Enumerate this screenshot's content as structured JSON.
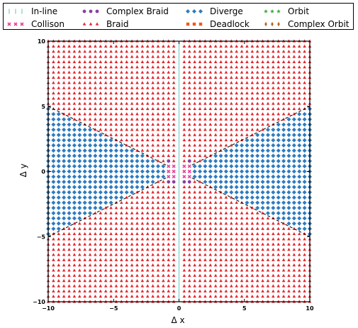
{
  "chart_data": {
    "type": "scatter",
    "title": "",
    "xlabel": "Δ x",
    "ylabel": "Δ y",
    "xlim": [
      -10,
      10
    ],
    "ylim": [
      -10,
      10
    ],
    "xticks": [
      -10,
      -5,
      0,
      5,
      10
    ],
    "yticks": [
      -10,
      -5,
      0,
      5,
      10
    ],
    "xtick_labels": [
      "−10",
      "−5",
      "0",
      "5",
      "10"
    ],
    "ytick_labels": [
      "−10",
      "−5",
      "0",
      "5",
      "10"
    ],
    "grid": false,
    "legend_position": "top",
    "grid_step": 0.4,
    "boundary_lines": [
      {
        "style": "dashed",
        "color": "#000000",
        "points": [
          [
            -10,
            5.0
          ],
          [
            -1.0,
            0.5
          ]
        ]
      },
      {
        "style": "dashed",
        "color": "#000000",
        "points": [
          [
            -10,
            -5.0
          ],
          [
            -1.0,
            -0.5
          ]
        ]
      },
      {
        "style": "dashed",
        "color": "#000000",
        "points": [
          [
            1.0,
            0.5
          ],
          [
            10,
            5.0
          ]
        ]
      },
      {
        "style": "dashed",
        "color": "#000000",
        "points": [
          [
            1.0,
            -0.5
          ],
          [
            10,
            -5.0
          ]
        ]
      }
    ],
    "series": [
      {
        "name": "In-line",
        "marker": "vline",
        "color": "#7fd3c6"
      },
      {
        "name": "Collison",
        "marker": "x",
        "color": "#e8409a"
      },
      {
        "name": "Complex Braid",
        "marker": "circle",
        "color": "#8a3fa0"
      },
      {
        "name": "Braid",
        "marker": "triangle",
        "color": "#e0282e"
      },
      {
        "name": "Diverge",
        "marker": "diamond",
        "color": "#2f7bbf"
      },
      {
        "name": "Deadlock",
        "marker": "square",
        "color": "#f05a1a"
      },
      {
        "name": "Orbit",
        "marker": "star",
        "color": "#3aa836"
      },
      {
        "name": "Complex Orbit",
        "marker": "thin-diamond",
        "color": "#b5651d"
      }
    ],
    "points": {
      "In-line": [
        [
          0,
          -10
        ],
        [
          0,
          10
        ]
      ],
      "Collison": [
        [
          -0.4,
          0.4
        ],
        [
          -0.4,
          0
        ],
        [
          -0.4,
          -0.4
        ],
        [
          0.4,
          0.4
        ],
        [
          0.4,
          0
        ],
        [
          0.4,
          -0.4
        ],
        [
          -0.8,
          0.4
        ],
        [
          -0.8,
          0
        ],
        [
          -0.8,
          -0.4
        ],
        [
          0.8,
          0.4
        ],
        [
          0.8,
          0
        ],
        [
          0.8,
          -0.4
        ]
      ],
      "Complex Braid": [
        [
          -0.8,
          0.8
        ],
        [
          -0.8,
          -0.8
        ],
        [
          0.8,
          0.8
        ],
        [
          0.8,
          -0.8
        ],
        [
          -0.4,
          -0.8
        ],
        [
          0.4,
          -0.8
        ]
      ],
      "Diverge_region": "abs(y) < abs(x)/2 and abs(x) > 1.0",
      "Braid_region": "all remaining grid points"
    }
  }
}
